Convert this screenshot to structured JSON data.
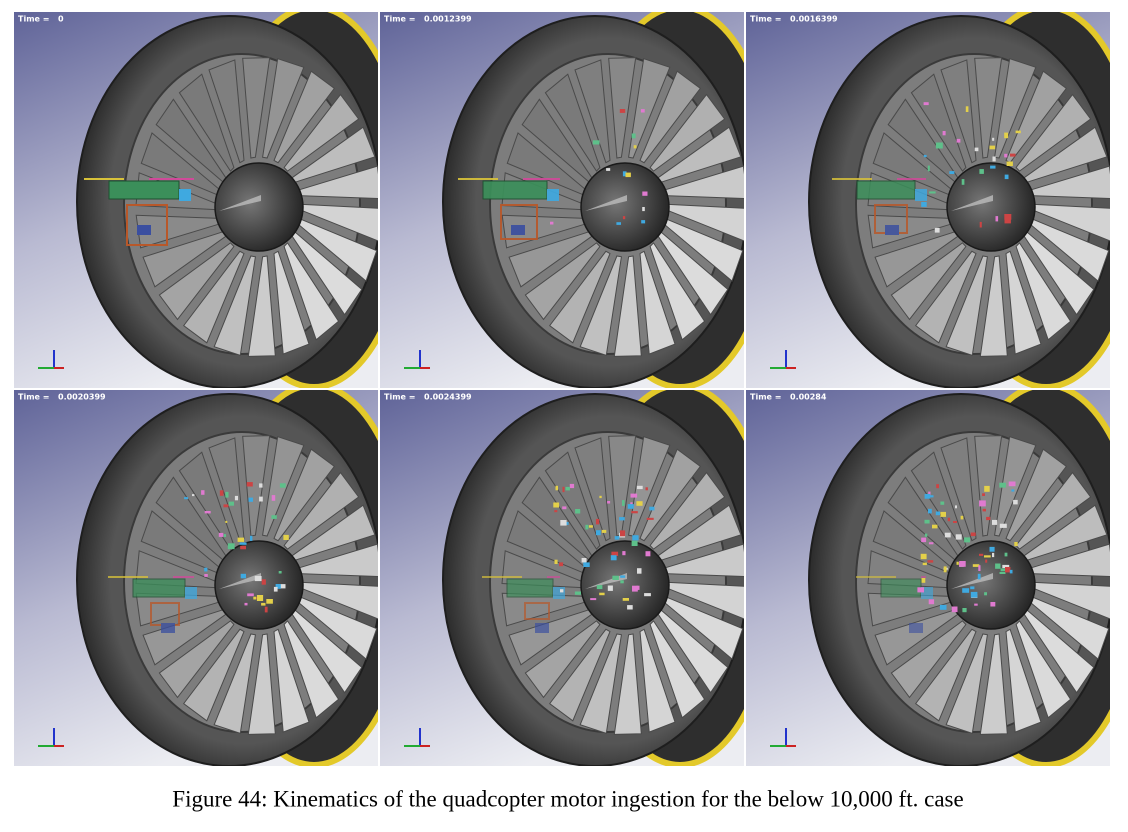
{
  "panels": [
    {
      "time_label": "Time =",
      "time_value": "0"
    },
    {
      "time_label": "Time =",
      "time_value": "0.0012399"
    },
    {
      "time_label": "Time =",
      "time_value": "0.0016399"
    },
    {
      "time_label": "Time =",
      "time_value": "0.0020399"
    },
    {
      "time_label": "Time =",
      "time_value": "0.0024399"
    },
    {
      "time_label": "Time =",
      "time_value": "0.00284"
    }
  ],
  "caption": "Figure 44: Kinematics of the quadcopter motor ingestion for the below 10,000 ft. case"
}
